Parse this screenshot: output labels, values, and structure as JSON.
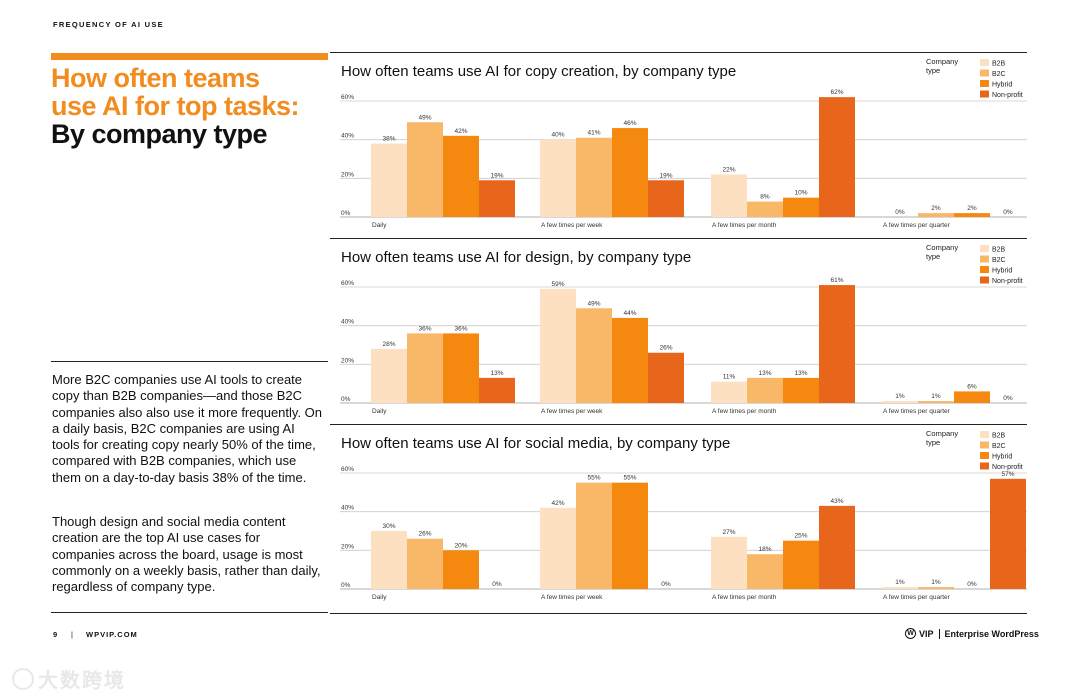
{
  "header": {
    "kicker": "FREQUENCY OF AI USE"
  },
  "headline": {
    "line1": "How often teams",
    "line2": "use AI for top tasks:",
    "line3": "By company type"
  },
  "body": {
    "p1": "More B2C companies use AI tools to create copy than B2B companies—and those B2C companies also also use it more frequently. On a daily basis, B2C companies are using AI tools for creating copy nearly 50% of the time, compared with B2B companies, which use them on a day-to-day basis 38% of the time.",
    "p2": "Though design and social media content creation are the top AI use cases for companies across the board, usage is most commonly on a weekly basis, rather than daily, regardless of company type."
  },
  "footer": {
    "page": "9",
    "separator": "|",
    "site": "WPVIP.COM",
    "brand": "VIP",
    "brand_full": "Enterprise WordPress",
    "logo_glyph": "W"
  },
  "watermark": {
    "text": "大数跨境"
  },
  "colors": {
    "B2B": "#fde0c2",
    "B2C": "#f9b868",
    "Hybrid": "#f5890f",
    "Non-profit": "#e8661c",
    "accent": "#f28c1f",
    "grid": "#cccccc"
  },
  "chart_data": [
    {
      "type": "bar",
      "title": "How often teams use AI for copy creation, by company type",
      "legend_title": "Company type",
      "legend_position": "top-right",
      "categories": [
        "Daily",
        "A few times per week",
        "A few times per month",
        "A few times per quarter"
      ],
      "y_ticks": [
        "0%",
        "20%",
        "40%",
        "60%"
      ],
      "ylim": [
        0,
        60
      ],
      "grid": true,
      "series": [
        {
          "name": "B2B",
          "values": [
            38,
            40,
            22,
            0
          ],
          "labels": [
            "38%",
            "40%",
            "22%",
            "0%"
          ]
        },
        {
          "name": "B2C",
          "values": [
            49,
            41,
            8,
            2
          ],
          "labels": [
            "49%",
            "41%",
            "8%",
            "2%"
          ]
        },
        {
          "name": "Hybrid",
          "values": [
            42,
            46,
            10,
            2
          ],
          "labels": [
            "42%",
            "46%",
            "10%",
            "2%"
          ]
        },
        {
          "name": "Non-profit",
          "values": [
            19,
            19,
            62,
            0
          ],
          "labels": [
            "19%",
            "19%",
            "62%",
            "0%"
          ]
        }
      ]
    },
    {
      "type": "bar",
      "title": "How often teams use AI for design, by company type",
      "legend_title": "Company type",
      "legend_position": "top-right",
      "categories": [
        "Daily",
        "A few times per week",
        "A few times per month",
        "A few times per quarter"
      ],
      "y_ticks": [
        "0%",
        "20%",
        "40%",
        "60%"
      ],
      "ylim": [
        0,
        60
      ],
      "grid": true,
      "series": [
        {
          "name": "B2B",
          "values": [
            28,
            59,
            11,
            1
          ],
          "labels": [
            "28%",
            "59%",
            "11%",
            "1%"
          ]
        },
        {
          "name": "B2C",
          "values": [
            36,
            49,
            13,
            1
          ],
          "labels": [
            "36%",
            "49%",
            "13%",
            "1%"
          ]
        },
        {
          "name": "Hybrid",
          "values": [
            36,
            44,
            13,
            6
          ],
          "labels": [
            "36%",
            "44%",
            "13%",
            "6%"
          ]
        },
        {
          "name": "Non-profit",
          "values": [
            13,
            26,
            61,
            0
          ],
          "labels": [
            "13%",
            "26%",
            "61%",
            "0%"
          ]
        }
      ]
    },
    {
      "type": "bar",
      "title": "How often teams use AI for social media, by company type",
      "legend_title": "Company type",
      "legend_position": "top-right",
      "categories": [
        "Daily",
        "A few times per week",
        "A few times per month",
        "A few times per quarter"
      ],
      "y_ticks": [
        "0%",
        "20%",
        "40%",
        "60%"
      ],
      "ylim": [
        0,
        60
      ],
      "grid": true,
      "series": [
        {
          "name": "B2B",
          "values": [
            30,
            42,
            27,
            1
          ],
          "labels": [
            "30%",
            "42%",
            "27%",
            "1%"
          ]
        },
        {
          "name": "B2C",
          "values": [
            26,
            55,
            18,
            1
          ],
          "labels": [
            "26%",
            "55%",
            "18%",
            "1%"
          ]
        },
        {
          "name": "Hybrid",
          "values": [
            20,
            55,
            25,
            0
          ],
          "labels": [
            "20%",
            "55%",
            "25%",
            "0%"
          ]
        },
        {
          "name": "Non-profit",
          "values": [
            0,
            0,
            43,
            57
          ],
          "labels": [
            "0%",
            "0%",
            "43%",
            "57%"
          ]
        }
      ]
    }
  ]
}
